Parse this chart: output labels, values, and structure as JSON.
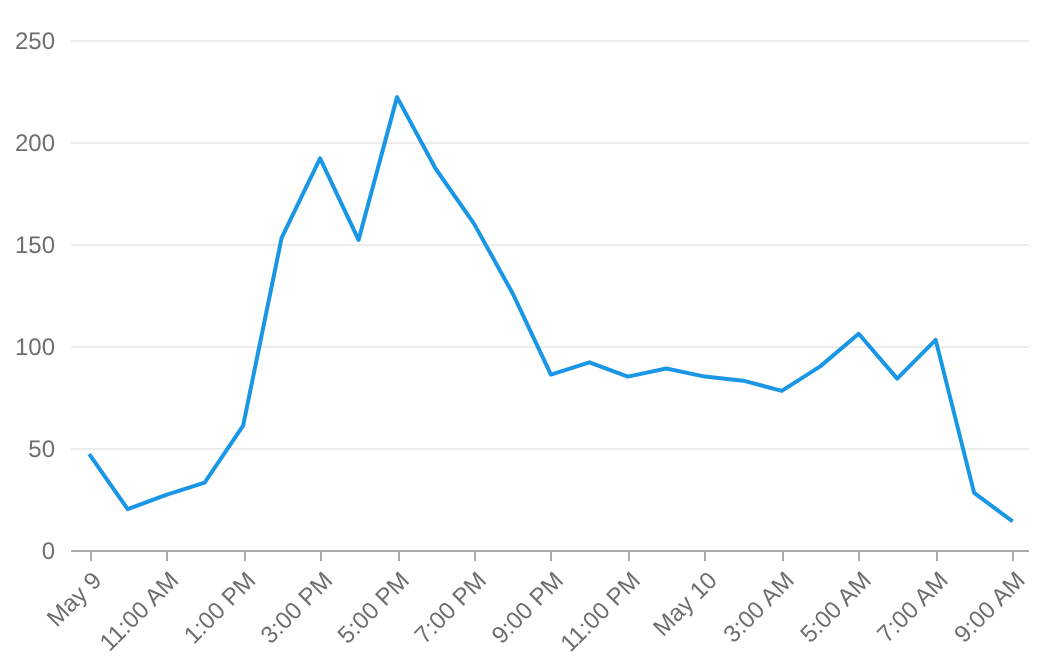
{
  "chart_data": {
    "type": "line",
    "x": [
      "--05-09T09:00",
      "--05-09T10:00",
      "--05-09T11:00",
      "--05-09T12:00",
      "--05-09T13:00",
      "--05-09T14:00",
      "--05-09T15:00",
      "--05-09T16:00",
      "--05-09T17:00",
      "--05-09T18:00",
      "--05-09T19:00",
      "--05-09T20:00",
      "--05-09T21:00",
      "--05-09T22:00",
      "--05-09T23:00",
      "--05-10T00:00",
      "--05-10T01:00",
      "--05-10T02:00",
      "--05-10T03:00",
      "--05-10T04:00",
      "--05-10T05:00",
      "--05-10T06:00",
      "--05-10T07:00",
      "--05-10T08:00",
      "--05-10T09:00"
    ],
    "series": [
      {
        "color": "#1a96e6",
        "values": [
          47,
          20,
          27,
          33,
          61,
          153,
          192,
          152,
          222,
          187,
          160,
          126,
          86,
          92,
          85,
          89,
          85,
          83,
          78,
          90,
          106,
          84,
          103,
          28,
          14
        ]
      }
    ],
    "xlim": [
      "--05-09T08:30",
      "--05-10T09:24"
    ],
    "xticks": [
      {
        "value": "--05-09T09:00",
        "label": "May 9"
      },
      {
        "value": "--05-09T11:00",
        "label": "11:00 AM"
      },
      {
        "value": "--05-09T13:00",
        "label": "1:00 PM"
      },
      {
        "value": "--05-09T15:00",
        "label": "3:00 PM"
      },
      {
        "value": "--05-09T17:00",
        "label": "5:00 PM"
      },
      {
        "value": "--05-09T19:00",
        "label": "7:00 PM"
      },
      {
        "value": "--05-09T21:00",
        "label": "9:00 PM"
      },
      {
        "value": "--05-09T23:00",
        "label": "11:00 PM"
      },
      {
        "value": "--05-10T01:00",
        "label": "May 10"
      },
      {
        "value": "--05-10T03:00",
        "label": "3:00 AM"
      },
      {
        "value": "--05-10T05:00",
        "label": "5:00 AM"
      },
      {
        "value": "--05-10T07:00",
        "label": "7:00 AM"
      },
      {
        "value": "--05-10T09:00",
        "label": "9:00 AM"
      }
    ],
    "ylim": [
      0,
      250
    ],
    "yticks": [
      0,
      50,
      100,
      150,
      200,
      250
    ],
    "grid": "y",
    "marker": "none",
    "line_style": "solid"
  }
}
